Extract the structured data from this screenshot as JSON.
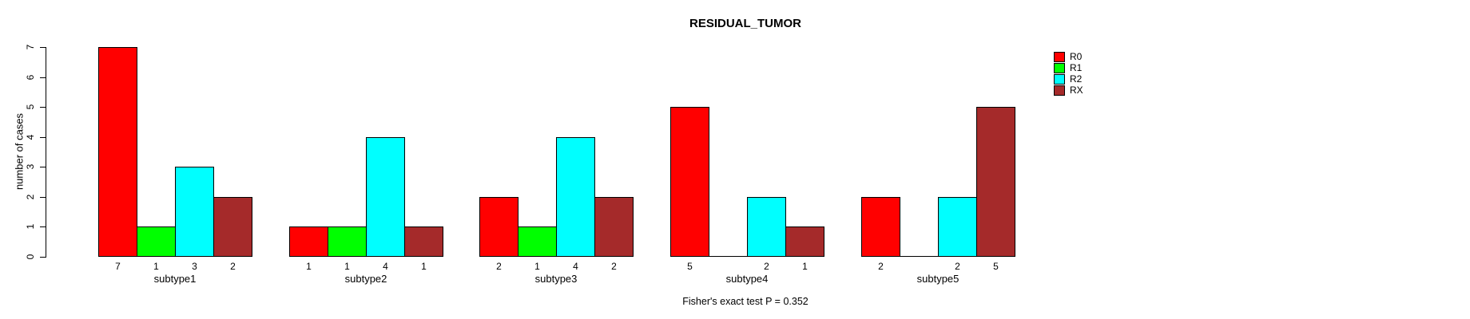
{
  "title": "RESIDUAL_TUMOR",
  "footer": "Fisher's exact test P = 0.352",
  "chart_data": {
    "type": "bar",
    "title": "RESIDUAL_TUMOR",
    "xlabel": "",
    "ylabel": "number of cases",
    "ylim": [
      0,
      7
    ],
    "yticks": [
      0,
      1,
      2,
      3,
      4,
      5,
      6,
      7
    ],
    "grid": false,
    "legend_position": "top-right",
    "legend_border": false,
    "bar_value_labels": "shown under each bar, omitted when value is 0",
    "categories": [
      "subtype1",
      "subtype2",
      "subtype3",
      "subtype4",
      "subtype5"
    ],
    "series": [
      {
        "name": "R0",
        "color": "#FF0000",
        "values": [
          7,
          1,
          2,
          5,
          2
        ]
      },
      {
        "name": "R1",
        "color": "#00FF00",
        "values": [
          1,
          1,
          1,
          0,
          0
        ]
      },
      {
        "name": "R2",
        "color": "#00FFFF",
        "values": [
          3,
          4,
          4,
          2,
          2
        ]
      },
      {
        "name": "RX",
        "color": "#A52A2A",
        "values": [
          2,
          1,
          2,
          1,
          5
        ]
      }
    ],
    "annotation": "Fisher's exact test P = 0.352"
  }
}
